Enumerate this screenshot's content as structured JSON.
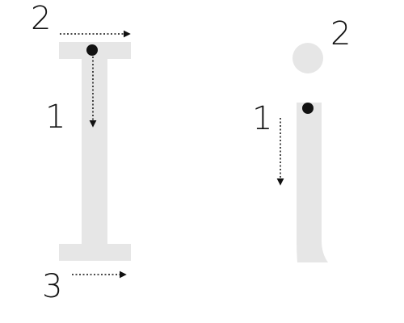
{
  "diagram": {
    "glyph_color": "#e6e6e6",
    "stroke_color": "#111111",
    "uppercase_I": {
      "steps": [
        {
          "label": "1",
          "direction": "down"
        },
        {
          "label": "2",
          "direction": "right"
        },
        {
          "label": "3",
          "direction": "right"
        }
      ]
    },
    "lowercase_i": {
      "steps": [
        {
          "label": "1",
          "direction": "down"
        },
        {
          "label": "2",
          "direction": "dot"
        }
      ]
    }
  }
}
